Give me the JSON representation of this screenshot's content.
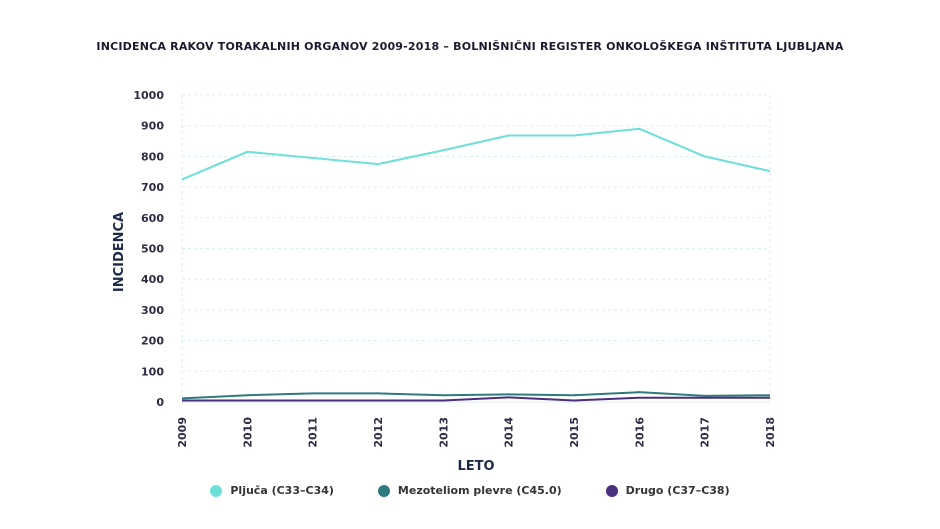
{
  "chart_data": {
    "type": "line",
    "title": "INCIDENCA RAKOV TORAKALNIH ORGANOV 2009-2018 – BOLNIŠNIČNI REGISTER ONKOLOŠKEGA INŠTITUTA LJUBLJANA",
    "xlabel": "LETO",
    "ylabel": "INCIDENCA",
    "x": [
      "2009",
      "2010",
      "2011",
      "2012",
      "2013",
      "2014",
      "2015",
      "2016",
      "2017",
      "2018"
    ],
    "yticks": [
      "0",
      "100",
      "200",
      "300",
      "400",
      "500",
      "600",
      "700",
      "800",
      "900",
      "1000"
    ],
    "ylim": [
      0,
      1000
    ],
    "grid": true,
    "legend_position": "bottom",
    "series": [
      {
        "name": "Pljuča (C33–C34)",
        "color": "#6ddfd9",
        "values": [
          725,
          815,
          795,
          775,
          820,
          868,
          868,
          890,
          800,
          752
        ]
      },
      {
        "name": "Mezoteliom plevre (C45.0)",
        "color": "#2f7a7e",
        "values": [
          12,
          22,
          28,
          28,
          22,
          25,
          22,
          32,
          20,
          22
        ]
      },
      {
        "name": "Drugo (C37–C38)",
        "color": "#4a2f7e",
        "values": [
          5,
          5,
          5,
          5,
          5,
          15,
          5,
          14,
          14,
          14
        ]
      }
    ]
  }
}
